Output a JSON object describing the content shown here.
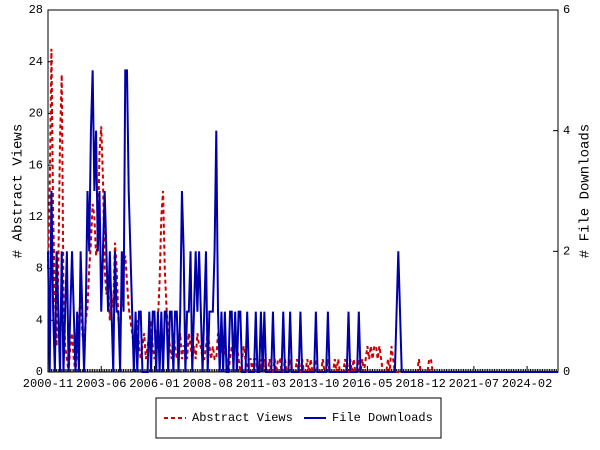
{
  "chart_data": {
    "type": "line",
    "x": [
      "2000-11",
      "2000-12",
      "2001-01",
      "2001-02",
      "2001-03",
      "2001-04",
      "2001-05",
      "2001-06",
      "2001-07",
      "2001-08",
      "2001-09",
      "2001-10",
      "2001-11",
      "2001-12",
      "2002-01",
      "2002-02",
      "2002-03",
      "2002-04",
      "2002-05",
      "2002-06",
      "2002-07",
      "2002-08",
      "2002-09",
      "2002-10",
      "2002-11",
      "2002-12",
      "2003-01",
      "2003-02",
      "2003-03",
      "2003-04",
      "2003-05",
      "2003-06",
      "2003-07",
      "2003-08",
      "2003-09",
      "2003-10",
      "2003-11",
      "2003-12",
      "2004-01",
      "2004-02",
      "2004-03",
      "2004-04",
      "2004-05",
      "2004-06",
      "2004-07",
      "2004-08",
      "2004-09",
      "2004-10",
      "2004-11",
      "2004-12",
      "2005-01",
      "2005-02",
      "2005-03",
      "2005-04",
      "2005-05",
      "2005-06",
      "2005-07",
      "2005-08",
      "2005-09",
      "2005-10",
      "2005-11",
      "2005-12",
      "2006-01",
      "2006-02",
      "2006-03",
      "2006-04",
      "2006-05",
      "2006-06",
      "2006-07",
      "2006-08",
      "2006-09",
      "2006-10",
      "2006-11",
      "2006-12",
      "2007-01",
      "2007-02",
      "2007-03",
      "2007-04",
      "2007-05",
      "2007-06",
      "2007-07",
      "2007-08",
      "2007-09",
      "2007-10",
      "2007-11",
      "2007-12",
      "2008-01",
      "2008-02",
      "2008-03",
      "2008-04",
      "2008-05",
      "2008-06",
      "2008-07",
      "2008-08",
      "2008-09",
      "2008-10",
      "2008-11",
      "2008-12",
      "2009-01",
      "2009-02",
      "2009-03",
      "2009-04",
      "2009-05",
      "2009-06",
      "2009-07",
      "2009-08",
      "2009-09",
      "2009-10",
      "2009-11",
      "2009-12",
      "2010-01",
      "2010-02",
      "2010-03",
      "2010-04",
      "2010-05",
      "2010-06",
      "2010-07",
      "2010-08",
      "2010-09",
      "2010-10",
      "2010-11",
      "2010-12",
      "2011-01",
      "2011-02",
      "2011-03",
      "2011-04",
      "2011-05",
      "2011-06",
      "2011-07",
      "2011-08",
      "2011-09",
      "2011-10",
      "2011-11",
      "2011-12",
      "2012-01",
      "2012-02",
      "2012-03",
      "2012-04",
      "2012-05",
      "2012-06",
      "2012-07",
      "2012-08",
      "2012-09",
      "2012-10",
      "2012-11",
      "2012-12",
      "2013-01",
      "2013-02",
      "2013-03",
      "2013-04",
      "2013-05",
      "2013-06",
      "2013-07",
      "2013-08",
      "2013-09",
      "2013-10",
      "2013-11",
      "2013-12",
      "2014-01",
      "2014-02",
      "2014-03",
      "2014-04",
      "2014-05",
      "2014-06",
      "2014-07",
      "2014-08",
      "2014-09",
      "2014-10",
      "2014-11",
      "2014-12",
      "2015-01",
      "2015-02",
      "2015-03",
      "2015-04",
      "2015-05",
      "2015-06",
      "2015-07",
      "2015-08",
      "2015-09",
      "2015-10",
      "2015-11",
      "2015-12",
      "2016-01",
      "2016-02",
      "2016-03",
      "2016-04",
      "2016-05",
      "2016-06",
      "2016-07",
      "2016-08",
      "2016-09",
      "2016-10",
      "2016-11",
      "2016-12",
      "2017-01",
      "2017-02",
      "2017-03",
      "2017-04",
      "2017-05",
      "2017-06",
      "2017-07",
      "2017-08",
      "2017-09",
      "2017-10",
      "2017-11",
      "2017-12",
      "2018-01",
      "2018-02",
      "2018-03",
      "2018-04",
      "2018-05",
      "2018-06",
      "2018-07",
      "2018-08",
      "2018-09",
      "2018-10",
      "2018-11",
      "2018-12",
      "2019-01",
      "2019-02",
      "2019-03",
      "2019-04",
      "2019-05",
      "2019-06",
      "2019-07",
      "2019-08",
      "2019-09",
      "2019-10",
      "2019-11",
      "2019-12",
      "2020-01",
      "2020-02",
      "2020-03",
      "2020-04",
      "2020-05",
      "2020-06",
      "2020-07",
      "2020-08",
      "2020-09",
      "2020-10",
      "2020-11",
      "2020-12",
      "2021-01",
      "2021-02",
      "2021-03",
      "2021-04",
      "2021-05",
      "2021-06",
      "2021-07",
      "2021-08",
      "2021-09",
      "2021-10",
      "2021-11",
      "2021-12",
      "2022-01",
      "2022-02",
      "2022-03",
      "2022-04",
      "2022-05",
      "2022-06",
      "2022-07",
      "2022-08",
      "2022-09",
      "2022-10",
      "2022-11",
      "2022-12",
      "2023-01",
      "2023-02",
      "2023-03",
      "2023-04",
      "2023-05",
      "2023-06",
      "2023-07",
      "2023-08",
      "2023-09",
      "2023-10",
      "2023-11",
      "2023-12",
      "2024-01",
      "2024-02",
      "2024-03",
      "2024-04",
      "2024-05",
      "2024-06",
      "2024-07",
      "2024-08",
      "2024-09",
      "2024-10",
      "2024-11",
      "2024-12",
      "2025-01",
      "2025-02",
      "2025-03",
      "2025-04",
      "2025-05",
      "2025-06",
      "2025-07",
      "2025-08"
    ],
    "xticks": [
      "2000-11",
      "2003-06",
      "2006-01",
      "2008-08",
      "2011-03",
      "2013-10",
      "2016-05",
      "2018-12",
      "2021-07",
      "2024-02"
    ],
    "ylabel": "# Abstract Views",
    "y2label": "# File Downloads",
    "ylim": [
      0,
      28
    ],
    "yticks": [
      0,
      4,
      8,
      12,
      16,
      20,
      24,
      28
    ],
    "y2lim": [
      0,
      6
    ],
    "y2ticks": [
      0,
      2,
      4,
      6
    ],
    "series": [
      {
        "name": "Abstract Views",
        "color": "#cc0000",
        "axis": "y",
        "values": [
          8,
          14,
          25,
          12,
          6,
          2,
          8,
          18,
          23,
          6,
          2,
          1,
          0,
          2,
          3,
          1,
          0,
          2,
          4,
          6,
          3,
          2,
          4,
          5,
          8,
          10,
          13,
          12,
          9,
          10,
          17,
          19,
          15,
          8,
          6,
          7,
          4,
          6,
          5,
          10,
          8,
          4,
          3,
          6,
          8,
          9,
          7,
          5,
          4,
          3,
          2,
          3,
          4,
          2,
          1,
          2,
          3,
          1,
          2,
          3,
          4,
          2,
          1,
          2,
          4,
          7,
          12,
          14,
          8,
          5,
          3,
          2,
          1,
          3,
          2,
          1,
          2,
          3,
          1,
          2,
          2,
          1,
          3,
          2,
          1,
          2,
          1,
          3,
          2,
          2,
          1,
          1,
          2,
          3,
          2,
          1,
          2,
          1,
          1,
          3,
          2,
          2,
          1,
          2,
          1,
          0,
          1,
          2,
          1,
          3,
          2,
          1,
          0,
          1,
          2,
          1,
          0,
          1,
          1,
          0,
          1,
          1,
          0,
          0,
          1,
          0,
          1,
          0,
          0,
          1,
          0,
          0,
          1,
          0,
          1,
          1,
          0,
          0,
          1,
          0,
          0,
          1,
          0,
          0,
          0,
          1,
          0,
          0,
          1,
          0,
          0,
          1,
          0,
          1,
          0,
          0,
          1,
          0,
          0,
          0,
          1,
          0,
          0,
          1,
          0,
          0,
          0,
          1,
          0,
          1,
          0,
          0,
          0,
          1,
          0,
          0,
          1,
          0,
          1,
          0,
          0,
          1,
          0,
          1,
          0,
          1,
          2,
          1,
          2,
          1,
          2,
          2,
          1,
          2,
          1,
          0,
          0,
          0,
          1,
          0,
          2,
          1,
          0,
          0,
          0,
          0,
          0,
          0,
          0,
          0,
          0,
          0,
          0,
          0,
          0,
          0,
          1,
          0,
          0,
          0,
          0,
          0,
          1,
          1,
          0,
          0,
          0,
          0,
          0,
          0,
          0,
          0,
          0,
          0,
          0,
          0,
          0,
          0,
          0,
          0,
          0,
          0,
          0,
          0,
          0,
          0,
          0,
          0,
          0,
          0,
          0,
          0,
          0,
          0,
          0,
          0,
          0,
          0,
          0,
          0,
          0,
          0,
          0,
          0,
          0,
          0,
          0,
          0,
          0,
          0,
          0,
          0,
          0,
          0,
          0,
          0,
          0,
          0,
          0,
          0,
          0,
          0,
          0,
          0,
          0,
          0,
          0,
          0,
          0,
          0,
          0,
          0,
          0,
          0,
          0,
          0,
          0,
          0
        ]
      },
      {
        "name": "File Downloads",
        "color": "#0000aa",
        "axis": "y2",
        "values": [
          2,
          0,
          3,
          1,
          0,
          2,
          1,
          0,
          2,
          0,
          1,
          2,
          0,
          1,
          2,
          1,
          0,
          1,
          0,
          2,
          1,
          0,
          1,
          3,
          2,
          4,
          5,
          3,
          4,
          2,
          3,
          1,
          2,
          3,
          2,
          1,
          2,
          1,
          0,
          2,
          1,
          1,
          0,
          2,
          1,
          5,
          5,
          3,
          2,
          1,
          0,
          1,
          0,
          1,
          1,
          0,
          0,
          0,
          0,
          1,
          0,
          1,
          1,
          0,
          1,
          0,
          1,
          0,
          1,
          1,
          0,
          1,
          1,
          0,
          1,
          1,
          0,
          1,
          3,
          2,
          0,
          1,
          1,
          2,
          0,
          1,
          2,
          1,
          2,
          1,
          0,
          1,
          2,
          0,
          1,
          1,
          1,
          2,
          4,
          1,
          0,
          1,
          0,
          1,
          0,
          0,
          1,
          1,
          0,
          1,
          0,
          1,
          1,
          0,
          0,
          0,
          1,
          0,
          0,
          0,
          0,
          1,
          0,
          0,
          1,
          0,
          1,
          0,
          0,
          0,
          0,
          1,
          0,
          0,
          0,
          0,
          0,
          1,
          0,
          0,
          0,
          1,
          0,
          0,
          0,
          0,
          0,
          1,
          0,
          0,
          0,
          0,
          0,
          0,
          0,
          0,
          1,
          0,
          0,
          0,
          0,
          0,
          0,
          1,
          0,
          0,
          0,
          0,
          0,
          0,
          0,
          0,
          0,
          0,
          0,
          1,
          0,
          0,
          0,
          0,
          0,
          1,
          0,
          0,
          0,
          0,
          0,
          0,
          0,
          0,
          0,
          0,
          0,
          0,
          0,
          0,
          0,
          0,
          0,
          0,
          0,
          0,
          0,
          1,
          2,
          1,
          0,
          0,
          0,
          0,
          0,
          0,
          0,
          0,
          0,
          0,
          0,
          0,
          0,
          0,
          0,
          0,
          0,
          0,
          0,
          0,
          0,
          0,
          0,
          0,
          0,
          0,
          0,
          0,
          0,
          0,
          0,
          0,
          0,
          0,
          0,
          0,
          0,
          0,
          0,
          0,
          0,
          0,
          0,
          0,
          0,
          0,
          0,
          0,
          0,
          0,
          0,
          0,
          0,
          0,
          0,
          0,
          0,
          0,
          0,
          0,
          0,
          0,
          0,
          0,
          0,
          0,
          0,
          0,
          0,
          0,
          0,
          0,
          0,
          0,
          0,
          0,
          0,
          0,
          0,
          0,
          0,
          0,
          0,
          0,
          0,
          0,
          0,
          0,
          0,
          0,
          0,
          0
        ]
      }
    ]
  }
}
